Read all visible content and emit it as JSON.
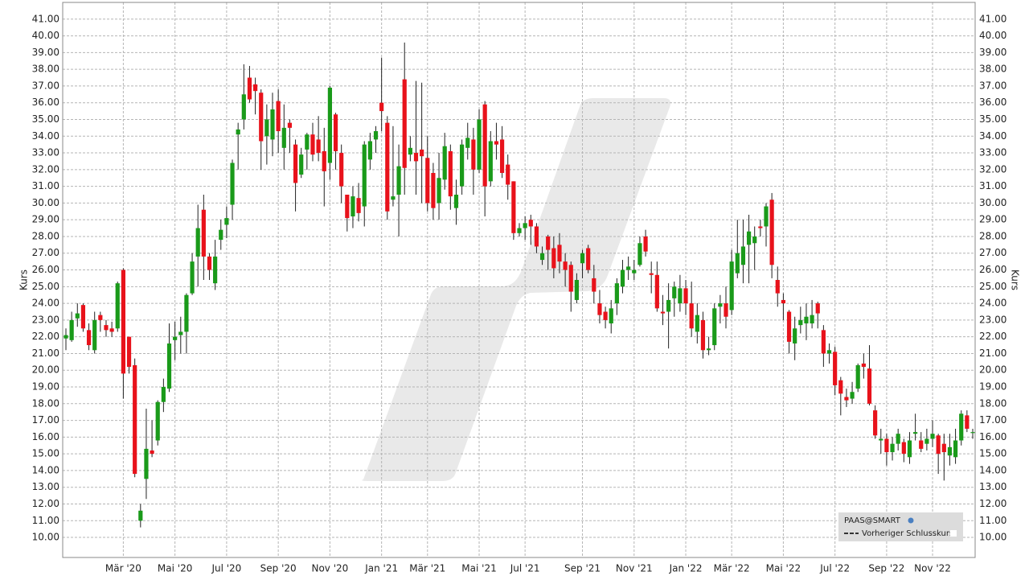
{
  "chart_data": {
    "type": "candlestick",
    "ylabel": "Kurs",
    "series_name": "PAAS@SMART",
    "reference_line_label": "Vorheriger Schlusskurs",
    "up_color": "#1a9a1a",
    "down_color": "#e8121b",
    "grid": true,
    "ylim": [
      8.8,
      42
    ],
    "yticks": [
      {
        "value": 10,
        "label": "10.00"
      },
      {
        "value": 11,
        "label": "11.00"
      },
      {
        "value": 12,
        "label": "12.00"
      },
      {
        "value": 13,
        "label": "13.00"
      },
      {
        "value": 14,
        "label": "14.00"
      },
      {
        "value": 15,
        "label": "15.00"
      },
      {
        "value": 16,
        "label": "16.00"
      },
      {
        "value": 17,
        "label": "17.00"
      },
      {
        "value": 18,
        "label": "18.00"
      },
      {
        "value": 19,
        "label": "19.00"
      },
      {
        "value": 20,
        "label": "20.00"
      },
      {
        "value": 21,
        "label": "21.00"
      },
      {
        "value": 22,
        "label": "22.00"
      },
      {
        "value": 23,
        "label": "23.00"
      },
      {
        "value": 24,
        "label": "24.00"
      },
      {
        "value": 25,
        "label": "25.00"
      },
      {
        "value": 26,
        "label": "26.00"
      },
      {
        "value": 27,
        "label": "27.00"
      },
      {
        "value": 28,
        "label": "28.00"
      },
      {
        "value": 29,
        "label": "29.00"
      },
      {
        "value": 30,
        "label": "30.00"
      },
      {
        "value": 31,
        "label": "31.00"
      },
      {
        "value": 32,
        "label": "32.00"
      },
      {
        "value": 33,
        "label": "33.00"
      },
      {
        "value": 34,
        "label": "34.00"
      },
      {
        "value": 35,
        "label": "35.00"
      },
      {
        "value": 36,
        "label": "36.00"
      },
      {
        "value": 37,
        "label": "37.00"
      },
      {
        "value": 38,
        "label": "38.00"
      },
      {
        "value": 39,
        "label": "39.00"
      },
      {
        "value": 40,
        "label": "40.00"
      },
      {
        "value": 41,
        "label": "41.00"
      }
    ],
    "categories": [
      null,
      null,
      null,
      null,
      null,
      null,
      null,
      null,
      null,
      null,
      "Mär '20",
      null,
      null,
      null,
      null,
      null,
      null,
      null,
      null,
      "Mai '20",
      null,
      null,
      null,
      null,
      null,
      null,
      null,
      null,
      "Jul '20",
      null,
      null,
      null,
      null,
      null,
      null,
      null,
      null,
      "Sep '20",
      null,
      null,
      null,
      null,
      null,
      null,
      null,
      null,
      "Nov '20",
      null,
      null,
      null,
      null,
      null,
      null,
      null,
      null,
      "Jan '21",
      null,
      null,
      null,
      null,
      null,
      null,
      null,
      "Mär '21",
      null,
      null,
      null,
      null,
      null,
      null,
      null,
      null,
      "Mai '21",
      null,
      null,
      null,
      null,
      null,
      null,
      null,
      "Jul '21",
      null,
      null,
      null,
      null,
      null,
      null,
      null,
      null,
      null,
      "Sep '21",
      null,
      null,
      null,
      null,
      null,
      null,
      null,
      null,
      "Nov '21",
      null,
      null,
      null,
      null,
      null,
      null,
      null,
      null,
      "Jan '22",
      null,
      null,
      null,
      null,
      null,
      null,
      null,
      "Mär '22",
      null,
      null,
      null,
      null,
      null,
      null,
      null,
      null,
      "Mai '22",
      null,
      null,
      null,
      null,
      null,
      null,
      null,
      null,
      "Jul '22",
      null,
      null,
      null,
      null,
      null,
      null,
      null,
      null,
      "Sep '22",
      null,
      null,
      null,
      null,
      null,
      null,
      null,
      "Nov '22",
      null,
      null,
      null,
      null,
      null,
      null,
      null
    ],
    "open": [
      21.9,
      21.8,
      23.1,
      23.9,
      22.4,
      21.2,
      23.3,
      22.7,
      22.5,
      22.5,
      26.0,
      22.0,
      20.3,
      11.0,
      13.5,
      15.2,
      15.8,
      18.1,
      18.9,
      21.8,
      22.1,
      22.3,
      24.6,
      26.8,
      29.6,
      26.8,
      25.2,
      27.8,
      28.7,
      29.9,
      34.1,
      35.0,
      37.5,
      37.1,
      36.6,
      34.0,
      33.8,
      36.1,
      33.3,
      34.8,
      33.5,
      31.7,
      33.2,
      34.1,
      33.8,
      33.1,
      32.4,
      35.3,
      33.0,
      30.5,
      29.2,
      30.3,
      29.8,
      32.6,
      33.8,
      36.0,
      34.8,
      30.2,
      30.5,
      37.4,
      32.9,
      33.0,
      33.2,
      32.7,
      31.8,
      30.0,
      31.4,
      33.1,
      29.7,
      31.0,
      33.3,
      33.8,
      32.0,
      35.9,
      31.3,
      33.7,
      33.8,
      32.3,
      31.3,
      28.2,
      28.5,
      29.0,
      28.6,
      26.6,
      28.0,
      27.3,
      27.5,
      26.5,
      26.3,
      24.2,
      26.4,
      27.3,
      25.5,
      24.0,
      23.5,
      22.8,
      24.0,
      25.0,
      26.0,
      25.8,
      26.3,
      28.0,
      25.8,
      25.7,
      23.5,
      23.5,
      24.3,
      24.0,
      24.9,
      24.0,
      22.3,
      23.0,
      21.2,
      21.5,
      23.8,
      24.0,
      23.6,
      25.8,
      26.3,
      27.5,
      27.6,
      28.6,
      28.6,
      30.2,
      25.4,
      24.2,
      23.5,
      21.6,
      22.7,
      22.8,
      22.8,
      24.0,
      22.4,
      21.0,
      21.1,
      19.4,
      18.4,
      18.3,
      18.9,
      20.4,
      20.1,
      17.6,
      15.8,
      15.9,
      15.1,
      15.6,
      15.7,
      14.8,
      16.2,
      15.8,
      15.6,
      15.9,
      16.1,
      15.6,
      14.9,
      14.8,
      15.8,
      17.3,
      16.3
    ],
    "high": [
      22.5,
      23.5,
      24.0,
      24.0,
      22.8,
      23.5,
      23.5,
      23.0,
      22.9,
      25.3,
      26.1,
      22.0,
      20.7,
      12.0,
      17.7,
      17.0,
      18.2,
      19.5,
      22.8,
      22.9,
      23.2,
      24.6,
      27.0,
      29.9,
      30.5,
      27.0,
      27.8,
      29.0,
      29.8,
      32.6,
      34.8,
      38.3,
      38.2,
      37.5,
      36.8,
      35.9,
      36.6,
      36.8,
      35.9,
      35.0,
      33.8,
      33.3,
      34.2,
      34.8,
      35.2,
      34.5,
      37.0,
      35.4,
      33.5,
      30.5,
      31.0,
      31.2,
      33.7,
      34.2,
      34.6,
      38.7,
      35.2,
      34.6,
      33.5,
      39.6,
      34.0,
      37.3,
      37.2,
      34.0,
      32.4,
      33.0,
      34.2,
      33.5,
      31.4,
      33.8,
      34.8,
      34.5,
      35.6,
      36.1,
      34.3,
      34.8,
      34.6,
      32.9,
      31.3,
      28.8,
      29.2,
      29.3,
      28.8,
      27.4,
      28.1,
      28.0,
      28.2,
      27.0,
      26.5,
      25.8,
      27.2,
      27.5,
      26.3,
      24.8,
      23.8,
      24.2,
      25.5,
      26.6,
      26.8,
      26.6,
      28.0,
      28.4,
      26.5,
      26.5,
      24.5,
      25.2,
      25.3,
      25.7,
      25.4,
      25.3,
      24.0,
      23.5,
      22.0,
      24.0,
      24.5,
      25.0,
      27.2,
      29.0,
      29.0,
      29.3,
      28.6,
      29.0,
      30.0,
      30.6,
      26.2,
      24.6,
      23.6,
      23.2,
      23.8,
      24.0,
      24.2,
      24.1,
      22.7,
      21.6,
      21.4,
      19.6,
      18.9,
      19.3,
      20.4,
      21.0,
      21.5,
      17.9,
      16.5,
      16.2,
      16.0,
      16.5,
      15.9,
      16.3,
      17.4,
      16.3,
      16.5,
      17.0,
      16.2,
      16.2,
      16.2,
      16.5,
      17.6,
      17.6,
      16.5
    ],
    "low": [
      21.2,
      21.7,
      22.6,
      22.3,
      21.2,
      21.0,
      22.3,
      22.0,
      22.0,
      22.3,
      18.3,
      19.8,
      13.6,
      10.6,
      12.3,
      14.8,
      15.5,
      17.5,
      18.7,
      20.6,
      21.0,
      21.0,
      24.5,
      25.0,
      25.4,
      25.4,
      24.8,
      27.2,
      27.9,
      29.0,
      32.0,
      34.4,
      36.0,
      35.3,
      32.0,
      32.3,
      32.8,
      33.0,
      32.0,
      33.0,
      29.5,
      31.5,
      32.0,
      32.5,
      32.5,
      29.8,
      31.4,
      32.0,
      30.0,
      28.3,
      28.5,
      28.9,
      28.6,
      32.0,
      33.0,
      34.3,
      29.0,
      29.8,
      28.0,
      30.5,
      32.5,
      30.5,
      30.0,
      29.5,
      29.0,
      29.0,
      30.8,
      29.6,
      28.7,
      30.5,
      32.6,
      30.5,
      31.8,
      29.2,
      31.0,
      32.6,
      31.5,
      30.2,
      27.8,
      28.0,
      27.8,
      27.5,
      27.0,
      26.3,
      26.0,
      25.5,
      25.8,
      25.0,
      23.5,
      24.0,
      25.5,
      25.8,
      24.0,
      22.8,
      22.5,
      22.2,
      23.3,
      24.6,
      25.4,
      25.4,
      26.2,
      26.8,
      24.6,
      23.5,
      22.7,
      21.3,
      23.2,
      23.5,
      23.3,
      22.0,
      21.6,
      20.7,
      20.9,
      21.2,
      22.8,
      22.5,
      23.3,
      25.5,
      25.2,
      25.2,
      26.0,
      28.0,
      27.4,
      25.5,
      23.8,
      23.0,
      21.0,
      20.6,
      22.2,
      21.8,
      22.5,
      22.5,
      20.2,
      20.4,
      18.5,
      17.3,
      17.8,
      18.0,
      18.7,
      19.5,
      17.9,
      15.9,
      15.0,
      14.3,
      14.6,
      15.2,
      14.5,
      14.4,
      15.8,
      15.1,
      15.2,
      15.4,
      13.8,
      13.4,
      14.3,
      14.4,
      15.5,
      16.3,
      15.9
    ],
    "close": [
      22.1,
      23.0,
      23.4,
      22.5,
      21.5,
      23.0,
      23.0,
      22.4,
      22.3,
      25.2,
      19.8,
      20.2,
      13.8,
      11.6,
      15.3,
      15.0,
      18.1,
      19.0,
      21.6,
      22.0,
      22.3,
      24.5,
      26.5,
      28.5,
      26.8,
      26.0,
      26.8,
      28.4,
      29.1,
      32.4,
      34.4,
      36.5,
      36.2,
      36.7,
      33.7,
      35.0,
      35.6,
      34.3,
      34.5,
      34.5,
      31.2,
      32.9,
      34.1,
      32.9,
      33.0,
      31.9,
      36.9,
      33.1,
      31.0,
      29.1,
      30.4,
      29.4,
      33.5,
      33.7,
      34.3,
      35.5,
      29.5,
      30.4,
      32.2,
      32.1,
      33.3,
      32.5,
      32.8,
      30.0,
      29.7,
      31.5,
      33.4,
      30.4,
      30.5,
      33.5,
      33.9,
      32.0,
      35.0,
      31.0,
      33.7,
      33.5,
      31.8,
      31.1,
      28.2,
      28.5,
      28.8,
      28.6,
      27.4,
      27.0,
      27.2,
      26.1,
      26.5,
      26.0,
      24.7,
      25.4,
      27.0,
      26.0,
      24.7,
      23.3,
      23.0,
      23.7,
      25.2,
      26.0,
      26.2,
      26.0,
      27.6,
      27.1,
      25.7,
      23.7,
      23.4,
      24.2,
      25.0,
      24.9,
      24.0,
      22.5,
      23.3,
      21.2,
      21.3,
      23.7,
      24.0,
      23.2,
      26.5,
      27.0,
      27.4,
      28.3,
      28.0,
      28.5,
      29.8,
      26.3,
      24.6,
      24.0,
      21.7,
      22.5,
      23.0,
      23.2,
      23.3,
      23.4,
      21.0,
      21.2,
      19.1,
      18.6,
      18.2,
      18.7,
      20.3,
      20.2,
      18.0,
      16.1,
      15.9,
      15.1,
      15.6,
      16.2,
      15.0,
      15.8,
      16.3,
      15.3,
      15.9,
      16.2,
      15.0,
      15.1,
      15.4,
      15.8,
      17.4,
      16.5,
      16.3
    ]
  }
}
